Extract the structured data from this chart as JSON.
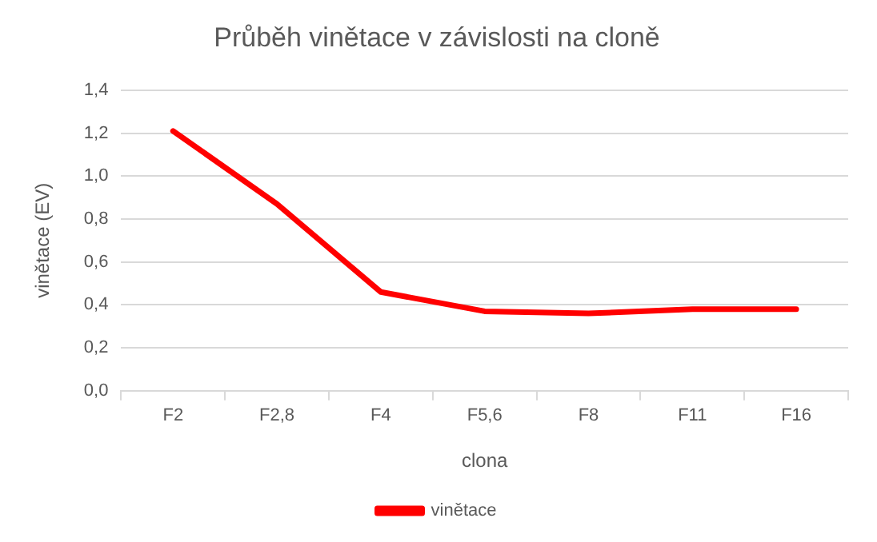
{
  "chart_data": {
    "type": "line",
    "title": "Průběh vinětace v závislosti na cloně",
    "xlabel": "clona",
    "ylabel": "vinětace (EV)",
    "categories": [
      "F2",
      "F2,8",
      "F4",
      "F5,6",
      "F8",
      "F11",
      "F16"
    ],
    "series": [
      {
        "name": "vinětace",
        "color": "#ff0000",
        "values": [
          1.21,
          0.87,
          0.46,
          0.37,
          0.36,
          0.38,
          0.38
        ]
      }
    ],
    "ylim": [
      0,
      1.4
    ],
    "yticks": [
      {
        "value": 0,
        "label": "0,0"
      },
      {
        "value": 0.2,
        "label": "0,2"
      },
      {
        "value": 0.4,
        "label": "0,4"
      },
      {
        "value": 0.6,
        "label": "0,6"
      },
      {
        "value": 0.8,
        "label": "0,8"
      },
      {
        "value": 1,
        "label": "1,0"
      },
      {
        "value": 1.2,
        "label": "1,2"
      },
      {
        "value": 1.4,
        "label": "1,4"
      }
    ],
    "grid": "y",
    "legend": "bottom",
    "marker": "none",
    "line_style": "solid"
  }
}
